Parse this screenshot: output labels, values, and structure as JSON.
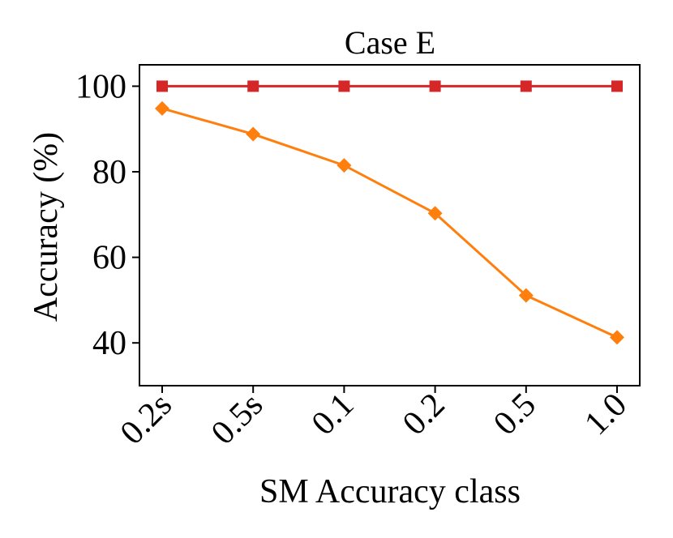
{
  "chart_data": {
    "type": "line",
    "title": "Case E",
    "xlabel": "SM Accuracy class",
    "ylabel": "Accuracy (%)",
    "categories": [
      "0.2s",
      "0.5s",
      "0.1",
      "0.2",
      "0.5",
      "1.0"
    ],
    "ylim": [
      30,
      105
    ],
    "yticks": [
      40,
      60,
      80,
      100
    ],
    "grid": false,
    "series": [
      {
        "values": [
          100,
          100,
          100,
          100,
          100,
          100
        ],
        "color": "#d62728",
        "marker": "square"
      },
      {
        "values": [
          94.8,
          88.8,
          81.5,
          70.3,
          51.1,
          41.3
        ],
        "color": "#ff7f0e",
        "marker": "diamond"
      }
    ]
  }
}
